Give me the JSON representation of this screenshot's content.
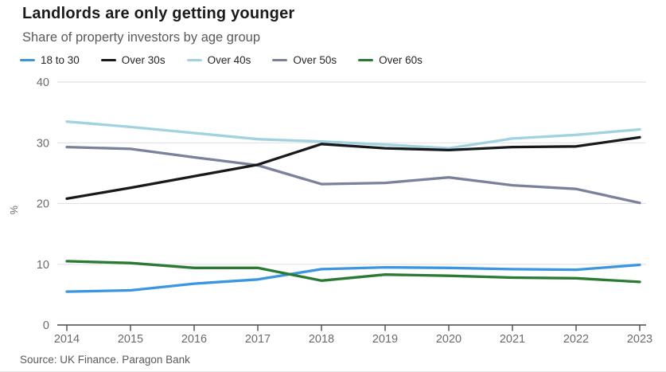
{
  "header": {
    "title": "Landlords are only getting younger",
    "subtitle": "Share of property investors by age group"
  },
  "footer": {
    "source": "Source: UK Finance. Paragon Bank"
  },
  "chart_data": {
    "type": "line",
    "x": [
      2014,
      2015,
      2016,
      2017,
      2018,
      2019,
      2020,
      2021,
      2022,
      2023
    ],
    "series": [
      {
        "name": "18 to 30",
        "color": "#3a96e0",
        "values": [
          5.5,
          5.7,
          6.8,
          7.5,
          9.2,
          9.5,
          9.4,
          9.2,
          9.1,
          9.9
        ]
      },
      {
        "name": "Over 30s",
        "color": "#17191d",
        "values": [
          20.8,
          22.6,
          24.5,
          26.4,
          29.8,
          29.1,
          28.8,
          29.3,
          29.4,
          30.9
        ]
      },
      {
        "name": "Over 40s",
        "color": "#a2d1df",
        "values": [
          33.5,
          32.6,
          31.6,
          30.6,
          30.2,
          29.7,
          29.1,
          30.7,
          31.3,
          32.2
        ]
      },
      {
        "name": "Over 50s",
        "color": "#79819b",
        "values": [
          29.3,
          29.0,
          27.6,
          26.3,
          23.2,
          23.4,
          24.3,
          23.0,
          22.4,
          20.1
        ]
      },
      {
        "name": "Over 60s",
        "color": "#2b7a33",
        "values": [
          10.5,
          10.2,
          9.4,
          9.4,
          7.3,
          8.3,
          8.1,
          7.8,
          7.7,
          7.1
        ]
      }
    ],
    "title": "Landlords are only getting younger",
    "subtitle": "Share of property investors by age group",
    "xlabel": "",
    "ylabel": "%",
    "yticks": [
      0,
      10,
      20,
      30,
      40
    ],
    "ylim": [
      0,
      40
    ],
    "grid": true,
    "legend_position": "top",
    "colors": {
      "gridline": "#e2e2e2",
      "axis": "#4a4a4a",
      "tick_text": "#6b6b6b"
    }
  }
}
